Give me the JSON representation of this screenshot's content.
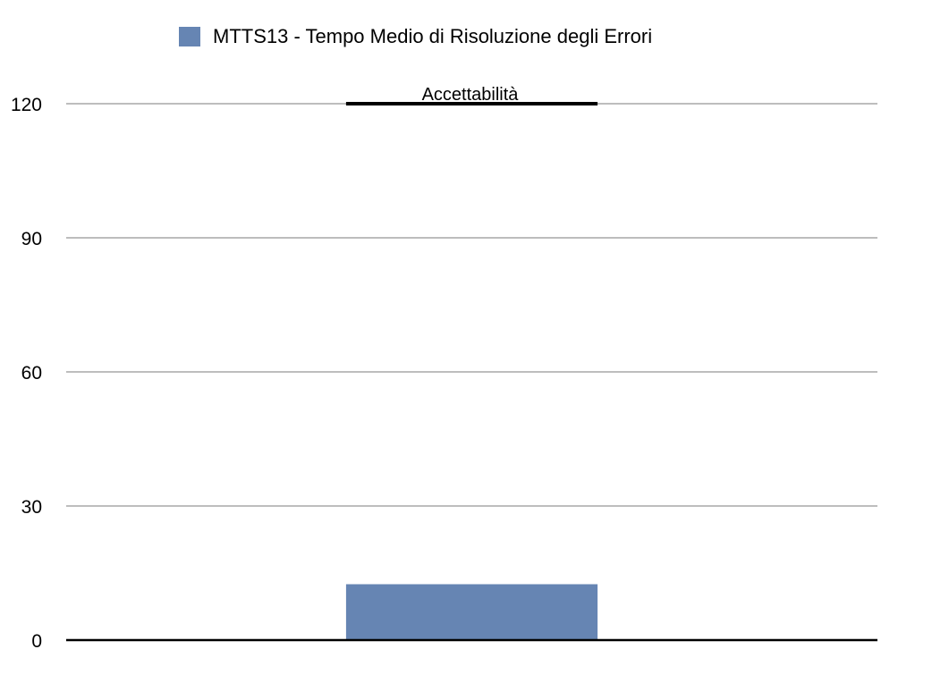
{
  "chart_data": {
    "type": "bar",
    "title": "",
    "xlabel": "",
    "ylabel": "",
    "categories": [
      ""
    ],
    "series": [
      {
        "name": "MTTS13 - Tempo Medio di Risoluzione degli Errori",
        "values": [
          12.5
        ],
        "color": "#6685b3"
      }
    ],
    "ylim": [
      0,
      120
    ],
    "yticks": [
      0,
      30,
      60,
      90,
      120
    ],
    "grid": true,
    "legend_position": "top",
    "threshold": {
      "label": "Accettabilità",
      "value": 120,
      "color": "#000000"
    }
  },
  "colors": {
    "grid": "#bdbdbd",
    "axis": "#000000"
  }
}
